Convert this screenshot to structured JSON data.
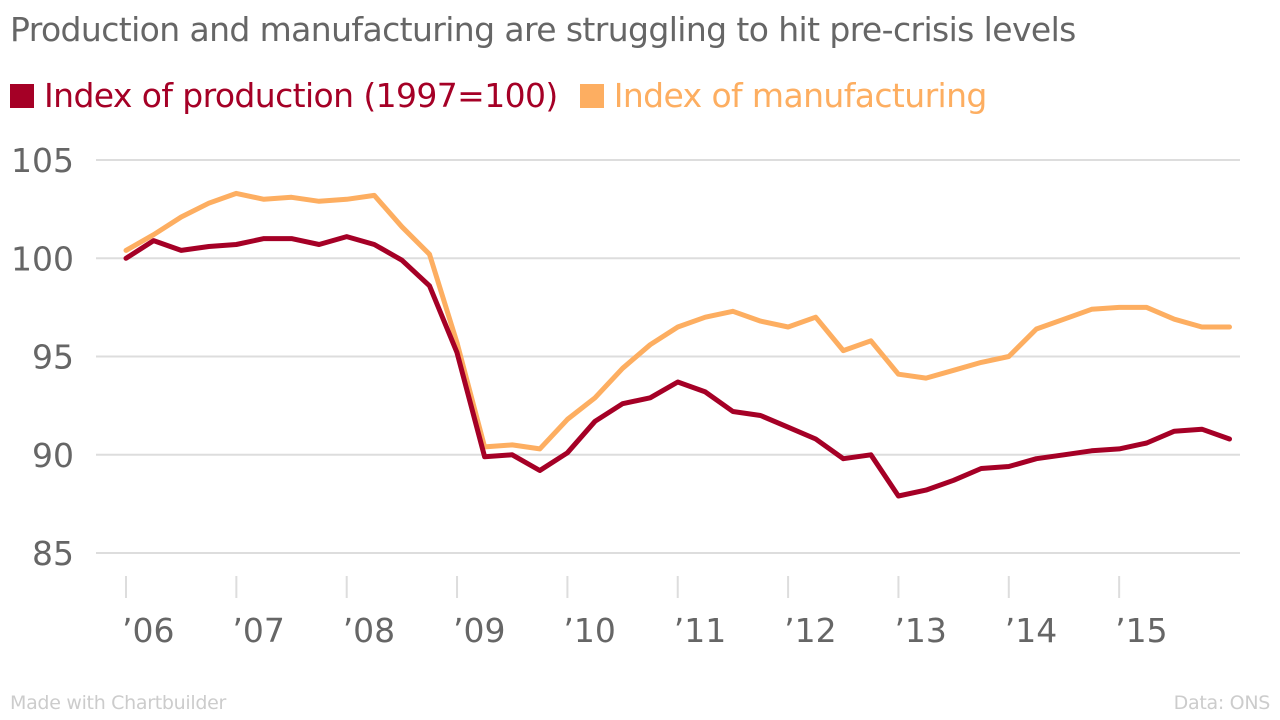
{
  "chart_data": {
    "type": "line",
    "title": "Production and manufacturing are struggling to hit pre-crisis levels",
    "xlabel": "",
    "ylabel": "",
    "ylim": [
      85,
      105
    ],
    "yticks": [
      105,
      100,
      95,
      90,
      85
    ],
    "grid": true,
    "legend_position": "top-left",
    "x_tick_labels": [
      "’06",
      "’07",
      "’08",
      "’09",
      "’10",
      "’11",
      "’12",
      "’13",
      "’14",
      "’15"
    ],
    "x_start": "2006 Q1",
    "x_frequency": "quarterly",
    "series": [
      {
        "name": "Index of production (1997=100)",
        "color": "#a50026",
        "values": [
          100.0,
          100.9,
          100.4,
          100.6,
          100.7,
          101.0,
          101.0,
          100.7,
          101.1,
          100.7,
          99.9,
          98.6,
          95.2,
          89.9,
          90.0,
          89.2,
          90.1,
          91.7,
          92.6,
          92.9,
          93.7,
          93.2,
          92.2,
          92.0,
          91.4,
          90.8,
          89.8,
          90.0,
          87.9,
          88.2,
          88.7,
          89.3,
          89.4,
          89.8,
          90.0,
          90.2,
          90.3,
          90.6,
          91.2,
          91.3,
          90.8
        ]
      },
      {
        "name": "Index of manufacturing",
        "color": "#fdae61",
        "values": [
          100.4,
          101.2,
          102.1,
          102.8,
          103.3,
          103.0,
          103.1,
          102.9,
          103.0,
          103.2,
          101.6,
          100.2,
          95.7,
          90.4,
          90.5,
          90.3,
          91.8,
          92.9,
          94.4,
          95.6,
          96.5,
          97.0,
          97.3,
          96.8,
          96.5,
          97.0,
          95.3,
          95.8,
          94.1,
          93.9,
          94.3,
          94.7,
          95.0,
          96.4,
          96.9,
          97.4,
          97.5,
          97.5,
          96.9,
          96.5,
          96.5
        ]
      }
    ]
  },
  "footer": {
    "credit": "Made with Chartbuilder",
    "source": "Data: ONS"
  }
}
